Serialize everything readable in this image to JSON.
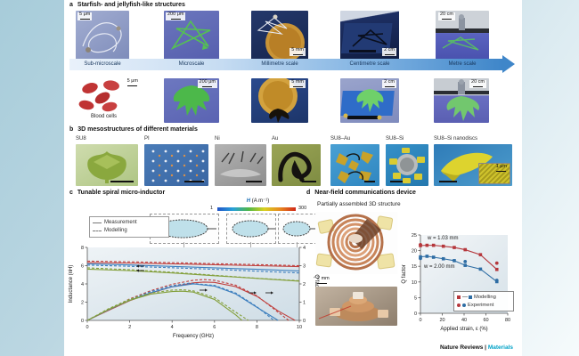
{
  "figure": {
    "panel_a": {
      "label": "a",
      "title": "Starfish- and jellyfish-like structures",
      "scales_row1": [
        "5 μm",
        "200 μm",
        "5 mm",
        "2 cm",
        "20 cm"
      ],
      "scale_captions": [
        "Sub-microscale",
        "Microscale",
        "Millimetre scale",
        "Centimetre scale",
        "Metre scale"
      ],
      "scales_row2": [
        "5 μm",
        "200 μm",
        "5 mm",
        "2 cm",
        "20 cm"
      ],
      "row2_caption": "Blood cells"
    },
    "panel_b": {
      "label": "b",
      "title": "3D mesostructures of different materials",
      "materials": [
        "SU8",
        "PI",
        "Ni",
        "Au",
        "SU8–Au",
        "SU8–Si",
        "SU8–Si nanodiscs"
      ],
      "inset_scale": "1 μm"
    },
    "panel_c": {
      "label": "c",
      "title": "Tunable spiral micro-inductor",
      "legend": {
        "measurement": "Measurement",
        "modelling": "Modelling"
      },
      "colorbar": {
        "label_var": "H",
        "label_units": " (A m⁻¹)",
        "min": "1",
        "max": "300"
      }
    },
    "panel_d": {
      "label": "d",
      "title": "Near-field communications device",
      "subtitle": "Partially assembled 3D structure",
      "scale": "2 mm",
      "annotation_w1": "w = 1.03 mm",
      "annotation_w2": "w = 2.00 mm",
      "legend": {
        "modelling": "Modelling",
        "experiment": "Experiment"
      }
    },
    "footer": {
      "brand": "Nature Reviews",
      "separator": " | ",
      "journal": "Materials"
    }
  },
  "chart_data": [
    {
      "id": "inductor",
      "type": "line",
      "title": "Tunable spiral micro-inductor",
      "xlabel": "Frequency (GHz)",
      "xlim": [
        0,
        10
      ],
      "xticks": [
        0,
        2,
        4,
        6,
        8,
        10
      ],
      "ylabel": "Inductance (nH)",
      "ylim": [
        0,
        8
      ],
      "yticks": [
        0,
        2,
        4,
        6,
        8
      ],
      "y2label": "Q factor",
      "y2lim": [
        0,
        4
      ],
      "y2ticks": [
        0,
        1,
        2,
        3,
        4
      ],
      "legend": [
        "Measurement (solid)",
        "Modelling (dashed)"
      ],
      "colorbar": {
        "label": "H (A m⁻¹)",
        "min": 1,
        "max": 300
      },
      "grid": false,
      "series": [
        {
          "name": "inductance-red-measurement",
          "axis": "y",
          "color": "#c0403e",
          "dash": "solid",
          "x": [
            0,
            2,
            4,
            6,
            8,
            10
          ],
          "y": [
            6.35,
            6.28,
            6.2,
            6.1,
            6.0,
            5.9
          ]
        },
        {
          "name": "inductance-red-modelling",
          "axis": "y",
          "color": "#c0403e",
          "dash": "dashed",
          "x": [
            0,
            2,
            4,
            6,
            8,
            10
          ],
          "y": [
            6.5,
            6.42,
            6.33,
            6.22,
            6.12,
            6.0
          ]
        },
        {
          "name": "inductance-blue-measurement",
          "axis": "y",
          "color": "#3d7fbe",
          "dash": "solid",
          "x": [
            0,
            2,
            4,
            6,
            8,
            10
          ],
          "y": [
            6.2,
            6.08,
            5.92,
            5.76,
            5.6,
            5.42
          ]
        },
        {
          "name": "inductance-blue-modelling",
          "axis": "y",
          "color": "#3d7fbe",
          "dash": "dashed",
          "x": [
            0,
            2,
            4,
            6,
            8,
            10
          ],
          "y": [
            6.06,
            5.93,
            5.77,
            5.6,
            5.4,
            5.2
          ]
        },
        {
          "name": "inductance-green-measurement",
          "axis": "y",
          "color": "#84a03c",
          "dash": "solid",
          "x": [
            0,
            2,
            4,
            6,
            8,
            10
          ],
          "y": [
            5.62,
            5.45,
            5.2,
            4.9,
            4.6,
            4.3
          ]
        },
        {
          "name": "inductance-green-modelling",
          "axis": "y",
          "color": "#84a03c",
          "dash": "dashed",
          "x": [
            0,
            2,
            4,
            6,
            8,
            10
          ],
          "y": [
            5.76,
            5.56,
            5.28,
            4.95,
            4.62,
            4.35
          ]
        },
        {
          "name": "qfactor-red-measurement",
          "axis": "y2",
          "color": "#c0403e",
          "dash": "solid",
          "x": [
            0,
            1,
            2,
            3,
            4,
            5,
            5.5,
            6,
            7,
            8,
            9,
            9.8
          ],
          "y": [
            0,
            0.55,
            1.08,
            1.5,
            1.84,
            2.06,
            2.1,
            2.08,
            1.85,
            1.32,
            0.52,
            0
          ]
        },
        {
          "name": "qfactor-red-modelling",
          "axis": "y2",
          "color": "#c0403e",
          "dash": "dashed",
          "x": [
            0,
            1,
            2,
            3,
            4,
            5,
            5.5,
            6,
            7,
            8,
            9,
            9.5
          ],
          "y": [
            0,
            0.6,
            1.18,
            1.63,
            1.98,
            2.2,
            2.24,
            2.2,
            1.93,
            1.35,
            0.45,
            0
          ]
        },
        {
          "name": "qfactor-blue-measurement",
          "axis": "y2",
          "color": "#3d7fbe",
          "dash": "solid",
          "x": [
            0,
            1,
            2,
            3,
            4,
            5,
            6,
            7,
            8,
            9
          ],
          "y": [
            0,
            0.58,
            1.1,
            1.52,
            1.84,
            2.0,
            1.88,
            1.45,
            0.72,
            0
          ]
        },
        {
          "name": "qfactor-blue-modelling",
          "axis": "y2",
          "color": "#3d7fbe",
          "dash": "dashed",
          "x": [
            0,
            1,
            2,
            3,
            4,
            4.8,
            6,
            7,
            8,
            8.8
          ],
          "y": [
            0,
            0.6,
            1.14,
            1.58,
            1.9,
            2.04,
            1.92,
            1.5,
            0.75,
            0
          ]
        },
        {
          "name": "qfactor-green-measurement",
          "axis": "y2",
          "color": "#84a03c",
          "dash": "solid",
          "x": [
            0,
            1,
            2,
            3,
            4,
            4.5,
            5,
            6,
            7,
            7.3
          ],
          "y": [
            0,
            0.6,
            1.1,
            1.44,
            1.58,
            1.6,
            1.55,
            1.15,
            0.3,
            0
          ]
        },
        {
          "name": "qfactor-green-modelling",
          "axis": "y2",
          "color": "#84a03c",
          "dash": "dashed",
          "x": [
            0,
            1,
            2,
            3,
            4,
            4.5,
            5,
            6,
            7,
            7.6
          ],
          "y": [
            0,
            0.64,
            1.16,
            1.5,
            1.66,
            1.68,
            1.62,
            1.25,
            0.45,
            0
          ]
        }
      ]
    },
    {
      "id": "nfc",
      "type": "scatter",
      "title": "Near-field communications device",
      "xlabel": "Applied strain, ε (%)",
      "xlim": [
        0,
        80
      ],
      "xticks": [
        0,
        20,
        40,
        60,
        80
      ],
      "ylabel": "Q factor",
      "ylim": [
        0,
        25
      ],
      "yticks": [
        0,
        5,
        10,
        15,
        20,
        25
      ],
      "grid": false,
      "legend": [
        "Modelling",
        "Experiment"
      ],
      "annotations": [
        "w = 1.03 mm",
        "w = 2.00 mm"
      ],
      "series": [
        {
          "name": "modelling-w-1.03mm",
          "color": "#b5373c",
          "marker": "square",
          "line": true,
          "x": [
            0,
            6,
            12,
            21,
            31,
            41,
            55,
            70
          ],
          "y": [
            21.6,
            21.7,
            21.7,
            21.4,
            21.0,
            20.3,
            18.7,
            14.0
          ]
        },
        {
          "name": "modelling-w-2.00mm",
          "color": "#2e6da4",
          "marker": "square",
          "line": true,
          "x": [
            0,
            6,
            12,
            21,
            31,
            41,
            55,
            70
          ],
          "y": [
            18.0,
            18.2,
            17.9,
            17.4,
            16.8,
            15.3,
            14.1,
            10.1
          ]
        },
        {
          "name": "experiment-w-1.03mm",
          "color": "#b5373c",
          "marker": "circle",
          "line": false,
          "x": [
            0,
            70
          ],
          "y": [
            21.9,
            16.0
          ]
        },
        {
          "name": "experiment-w-2.00mm",
          "color": "#2e6da4",
          "marker": "circle",
          "line": false,
          "x": [
            0,
            41,
            70
          ],
          "y": [
            17.5,
            16.5,
            10.5
          ]
        }
      ]
    }
  ]
}
